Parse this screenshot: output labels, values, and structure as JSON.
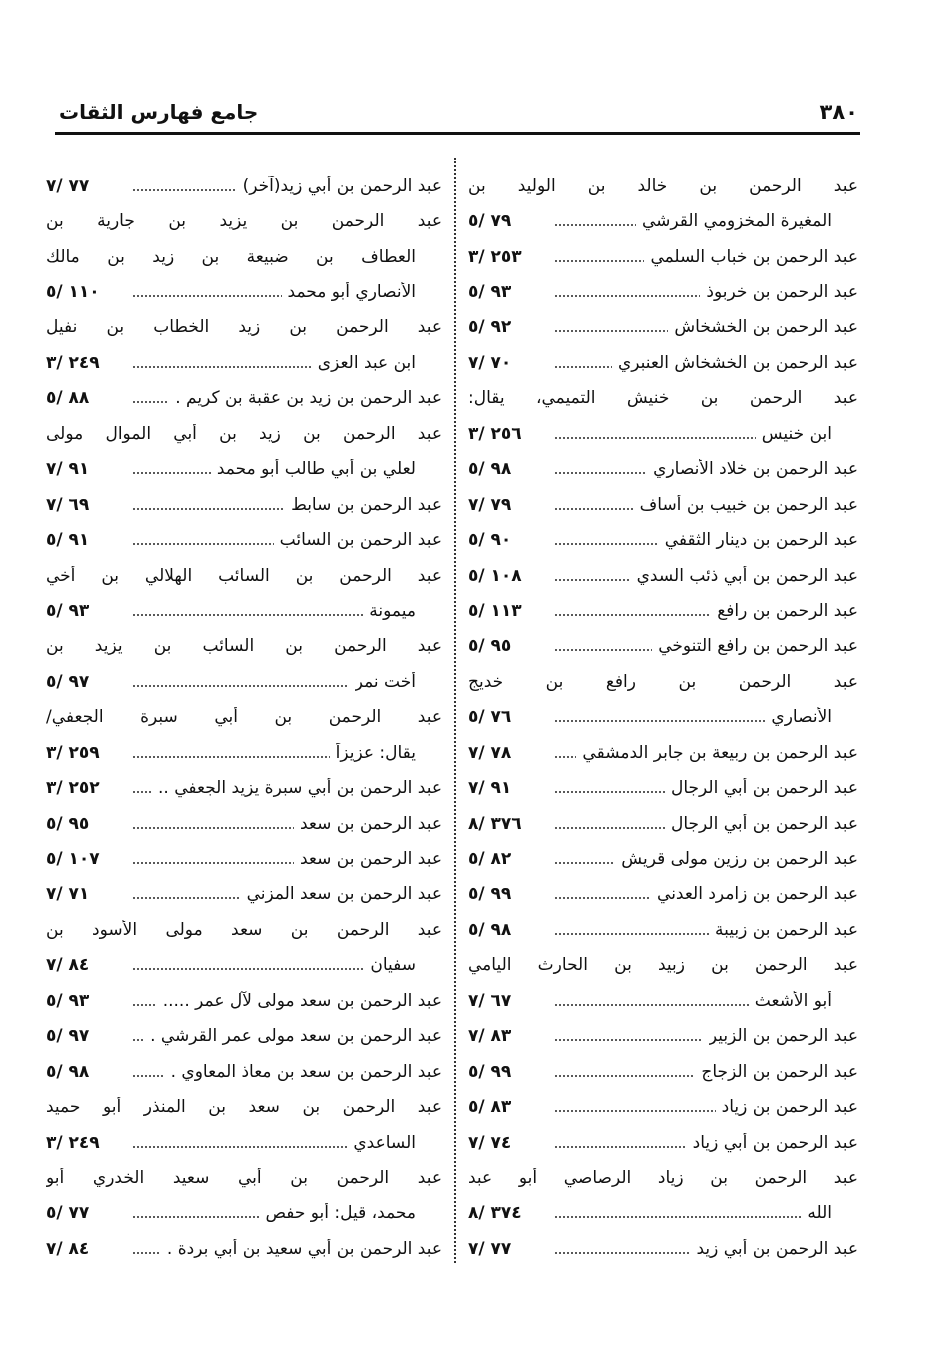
{
  "header": {
    "page_number": "٣٨٠",
    "running_title": "جامع فهارس الثقات"
  },
  "columns": {
    "right": [
      {
        "text": "عبد الرحمن بن خالد بن الوليد بن",
        "ref": null,
        "cont": false
      },
      {
        "text": "المغيرة المخزومي القرشي",
        "ref": "٧٩ /٥",
        "cont": true
      },
      {
        "text": "عبد الرحمن بن خباب السلمي",
        "ref": "٢٥٣ /٣",
        "cont": false
      },
      {
        "text": "عبد الرحمن بن خربوذ",
        "ref": "٩٣ /٥",
        "cont": false
      },
      {
        "text": "عبد الرحمن بن الخشخاش",
        "ref": "٩٢ /٥",
        "cont": false
      },
      {
        "text": "عبد الرحمن بن الخشخاش العنبري",
        "ref": "٧٠ /٧",
        "cont": false
      },
      {
        "text": "عبد الرحمن بن خنيش التميمي، يقال:",
        "ref": null,
        "cont": false
      },
      {
        "text": "ابن خنيس",
        "ref": "٢٥٦ /٣",
        "cont": true
      },
      {
        "text": "عبد الرحمن بن خلاد الأنصاري",
        "ref": "٩٨ /٥",
        "cont": false
      },
      {
        "text": "عبد الرحمن بن خبيب بن أساف",
        "ref": "٧٩ /٧",
        "cont": false
      },
      {
        "text": "عبد الرحمن بن دينار الثقفي",
        "ref": "٩٠ /٥",
        "cont": false
      },
      {
        "text": "عبد الرحمن بن أبي ذئب السدي",
        "ref": "١٠٨ /٥",
        "cont": false
      },
      {
        "text": "عبد الرحمن بن رافع",
        "ref": "١١٣ /٥",
        "cont": false
      },
      {
        "text": "عبد الرحمن بن رافع التنوخي",
        "ref": "٩٥ /٥",
        "cont": false
      },
      {
        "text": "عبد الرحمن بن رافع بن خديج",
        "ref": null,
        "cont": false
      },
      {
        "text": "الأنصاري",
        "ref": "٧٦ /٥",
        "cont": true
      },
      {
        "text": "عبد الرحمن بن ربيعة بن جابر الدمشقي",
        "ref": "٧٨ /٧",
        "cont": false
      },
      {
        "text": "عبد الرحمن بن أبي الرجال",
        "ref": "٩١ /٧",
        "cont": false
      },
      {
        "text": "عبد الرحمن بن أبي الرجال",
        "ref": "٣٧٦ /٨",
        "cont": false
      },
      {
        "text": "عبد الرحمن بن رزين مولى قريش",
        "ref": "٨٢ /٥",
        "cont": false
      },
      {
        "text": "عبد الرحمن بن زامرد العدني",
        "ref": "٩٩ /٥",
        "cont": false
      },
      {
        "text": "عبد الرحمن بن زبيبة",
        "ref": "٩٨ /٥",
        "cont": false
      },
      {
        "text": "عبد الرحمن بن زبيد بن الحارث اليامي",
        "ref": null,
        "cont": false
      },
      {
        "text": "أبو الأشعث",
        "ref": "٦٧ /٧",
        "cont": true
      },
      {
        "text": "عبد الرحمن بن الزبير",
        "ref": "٨٣ /٧",
        "cont": false
      },
      {
        "text": "عبد الرحمن بن الزجاج",
        "ref": "٩٩ /٥",
        "cont": false
      },
      {
        "text": "عبد الرحمن بن زياد",
        "ref": "٨٣ /٥",
        "cont": false
      },
      {
        "text": "عبد الرحمن بن أبي زياد",
        "ref": "٧٤ /٧",
        "cont": false
      },
      {
        "text": "عبد الرحمن بن زياد الرصاصي أبو عبد",
        "ref": null,
        "cont": false
      },
      {
        "text": "الله",
        "ref": "٣٧٤ /٨",
        "cont": true
      },
      {
        "text": "عبد الرحمن بن أبي زيد",
        "ref": "٧٧ /٧",
        "cont": false
      }
    ],
    "left": [
      {
        "text": "عبد الرحمن بن أبي زيد(آخر)",
        "ref": "٧٧ /٧",
        "cont": false
      },
      {
        "text": "عبد الرحمن بن يزيد بن جارية بن",
        "ref": null,
        "cont": false
      },
      {
        "text": "العطاف بن ضبيعة بن زيد بن مالك",
        "ref": null,
        "cont": true
      },
      {
        "text": "الأنصاري أبو محمد",
        "ref": "١١٠ /٥",
        "cont": true
      },
      {
        "text": "عبد الرحمن بن زيد الخطاب بن نفيل",
        "ref": null,
        "cont": false
      },
      {
        "text": "ابن عبد العزى",
        "ref": "٢٤٩ /٣",
        "cont": true
      },
      {
        "text": "عبد الرحمن بن زيد بن عقبة بن كريم .",
        "ref": "٨٨ /٥",
        "cont": false
      },
      {
        "text": "عبد الرحمن بن زيد بن أبي الموال مولى",
        "ref": null,
        "cont": false
      },
      {
        "text": "لعلي بن أبي طالب أبو محمد",
        "ref": "٩١ /٧",
        "cont": true
      },
      {
        "text": "عبد الرحمن بن سابط",
        "ref": "٦٩ /٧",
        "cont": false
      },
      {
        "text": "عبد الرحمن بن السائب",
        "ref": "٩١ /٥",
        "cont": false
      },
      {
        "text": "عبد الرحمن بن السائب الهلالي بن أخي",
        "ref": null,
        "cont": false
      },
      {
        "text": "ميمونة",
        "ref": "٩٣ /٥",
        "cont": true
      },
      {
        "text": "عبد الرحمن بن السائب بن يزيد بن",
        "ref": null,
        "cont": false
      },
      {
        "text": "أخت نمر",
        "ref": "٩٧ /٥",
        "cont": true
      },
      {
        "text": "عبد الرحمن بن أبي سبرة الجعفي/",
        "ref": null,
        "cont": false
      },
      {
        "text": "يقال: عزيزاً",
        "ref": "٢٥٩ /٣",
        "cont": true
      },
      {
        "text": "عبد الرحمن بن أبي سبرة يزيد الجعفي ..",
        "ref": "٢٥٢ /٣",
        "cont": false
      },
      {
        "text": "عبد الرحمن بن سعد",
        "ref": "٩٥ /٥",
        "cont": false
      },
      {
        "text": "عبد الرحمن بن سعد",
        "ref": "١٠٧ /٥",
        "cont": false
      },
      {
        "text": "عبد الرحمن بن سعد المزني",
        "ref": "٧١ /٧",
        "cont": false
      },
      {
        "text": "عبد الرحمن بن سعد مولى الأسود بن",
        "ref": null,
        "cont": false
      },
      {
        "text": "سفيان",
        "ref": "٨٤ /٧",
        "cont": true
      },
      {
        "text": "عبد الرحمن بن سعد مولى لآل عمر .....",
        "ref": "٩٣ /٥",
        "cont": false
      },
      {
        "text": "عبد الرحمن بن سعد مولى عمر القرشي .",
        "ref": "٩٧ /٥",
        "cont": false
      },
      {
        "text": "عبد الرحمن بن سعد بن معاذ المعاوي .",
        "ref": "٩٨ /٥",
        "cont": false
      },
      {
        "text": "عبد الرحمن بن سعد بن المنذر أبو حميد",
        "ref": null,
        "cont": false
      },
      {
        "text": "الساعدي",
        "ref": "٢٤٩ /٣",
        "cont": true
      },
      {
        "text": "عبد الرحمن بن أبي سعيد الخدري أبو",
        "ref": null,
        "cont": false
      },
      {
        "text": "محمد، قيل: أبو حفص",
        "ref": "٧٧ /٥",
        "cont": true
      },
      {
        "text": "عبد الرحمن بن أبي سعيد بن أبي بردة .",
        "ref": "٨٤ /٧",
        "cont": false
      }
    ]
  }
}
